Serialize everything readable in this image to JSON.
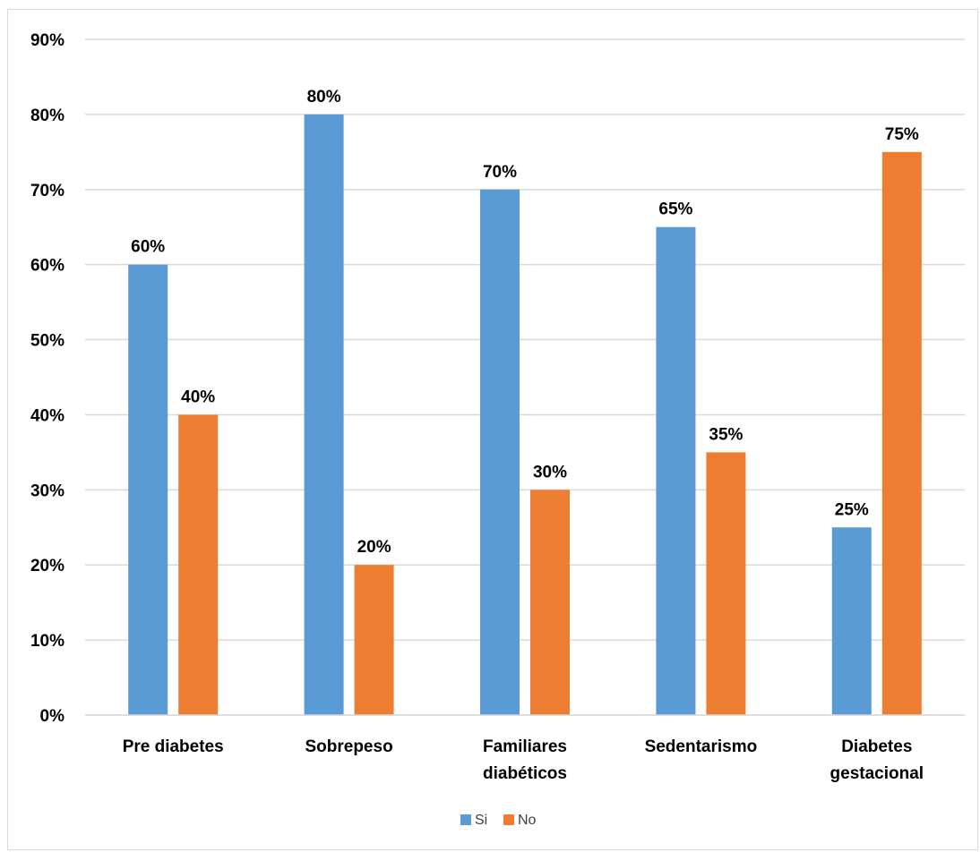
{
  "chart_data": {
    "type": "bar",
    "title": "",
    "xlabel": "",
    "ylabel": "",
    "categories": [
      "Pre diabetes",
      "Sobrepeso",
      "Familiares diabéticos",
      "Sedentarismo",
      "Diabetes gestacional"
    ],
    "category_lines": [
      [
        "Pre diabetes"
      ],
      [
        "Sobrepeso"
      ],
      [
        "Familiares",
        "diabéticos"
      ],
      [
        "Sedentarismo"
      ],
      [
        "Diabetes",
        "gestacional"
      ]
    ],
    "series": [
      {
        "name": "Si",
        "color": "#5B9BD5",
        "values": [
          60,
          80,
          70,
          65,
          25
        ],
        "labels": [
          "60%",
          "80%",
          "70%",
          "65%",
          "25%"
        ]
      },
      {
        "name": "No",
        "color": "#ED7D31",
        "values": [
          40,
          20,
          30,
          35,
          75
        ],
        "labels": [
          "40%",
          "20%",
          "30%",
          "35%",
          "75%"
        ]
      }
    ],
    "ylim": [
      0,
      90
    ],
    "y_ticks": [
      0,
      10,
      20,
      30,
      40,
      50,
      60,
      70,
      80,
      90
    ],
    "y_tick_labels": [
      "0%",
      "10%",
      "20%",
      "30%",
      "40%",
      "50%",
      "60%",
      "70%",
      "80%",
      "90%"
    ],
    "grid": true,
    "gridline_color": "#d9d9d9",
    "legend": {
      "position": "bottom",
      "entries": [
        "Si",
        "No"
      ]
    }
  }
}
